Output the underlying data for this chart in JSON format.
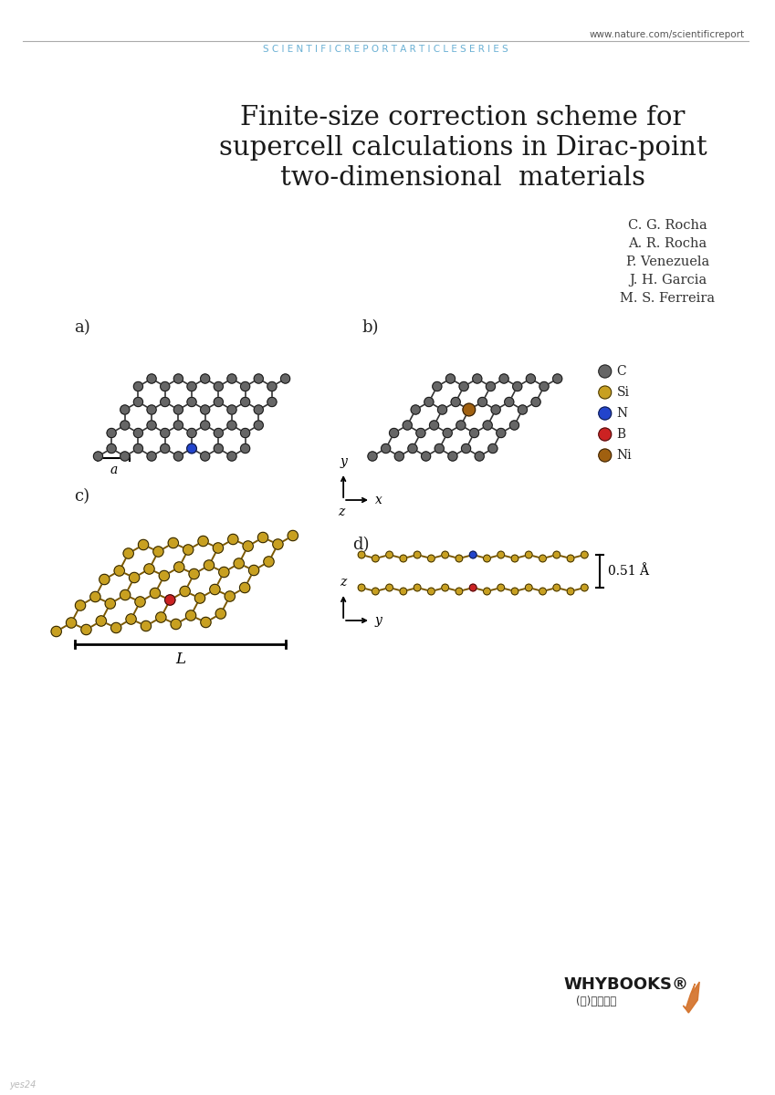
{
  "bg_color": "#ffffff",
  "header_url": "www.nature.com/scientificreport",
  "header_series": "S C I E N T I F I C R E P O R T A R T I C L E S E R I E S",
  "header_series_color": "#6ab0d4",
  "header_url_color": "#555555",
  "title_line1": "Finite-size correction scheme for",
  "title_line2": "supercell calculations in Dirac-point",
  "title_line3": "two-dimensional  materials",
  "title_color": "#1a1a1a",
  "title_fontsize": 21,
  "authors": [
    "C. G. Rocha",
    "A. R. Rocha",
    "P. Venezuela",
    "J. H. Garcia",
    "M. S. Ferreira"
  ],
  "authors_color": "#333333",
  "authors_fontsize": 10.5,
  "label_a": "a)",
  "label_b": "b)",
  "label_c": "c)",
  "label_d": "d)",
  "label_color": "#222222",
  "label_fontsize": 13,
  "legend_items": [
    {
      "label": "C",
      "color": "#666666"
    },
    {
      "label": "Si",
      "color": "#c8a020"
    },
    {
      "label": "N",
      "color": "#2244cc"
    },
    {
      "label": "B",
      "color": "#cc2222"
    },
    {
      "label": "Ni",
      "color": "#a06010"
    }
  ],
  "scale_label_a": "a",
  "scale_label_L": "L",
  "annotation_051": "0.51 Å",
  "axis_label_x": "x",
  "axis_label_y_top": "y",
  "axis_label_z_top": "z",
  "axis_label_z_bot": "z",
  "axis_label_y_bot": "y",
  "whybooks_text": "WHYBOOKS®",
  "whybooks_sub": "(주)와이북스",
  "footer_watermark": "yes24"
}
